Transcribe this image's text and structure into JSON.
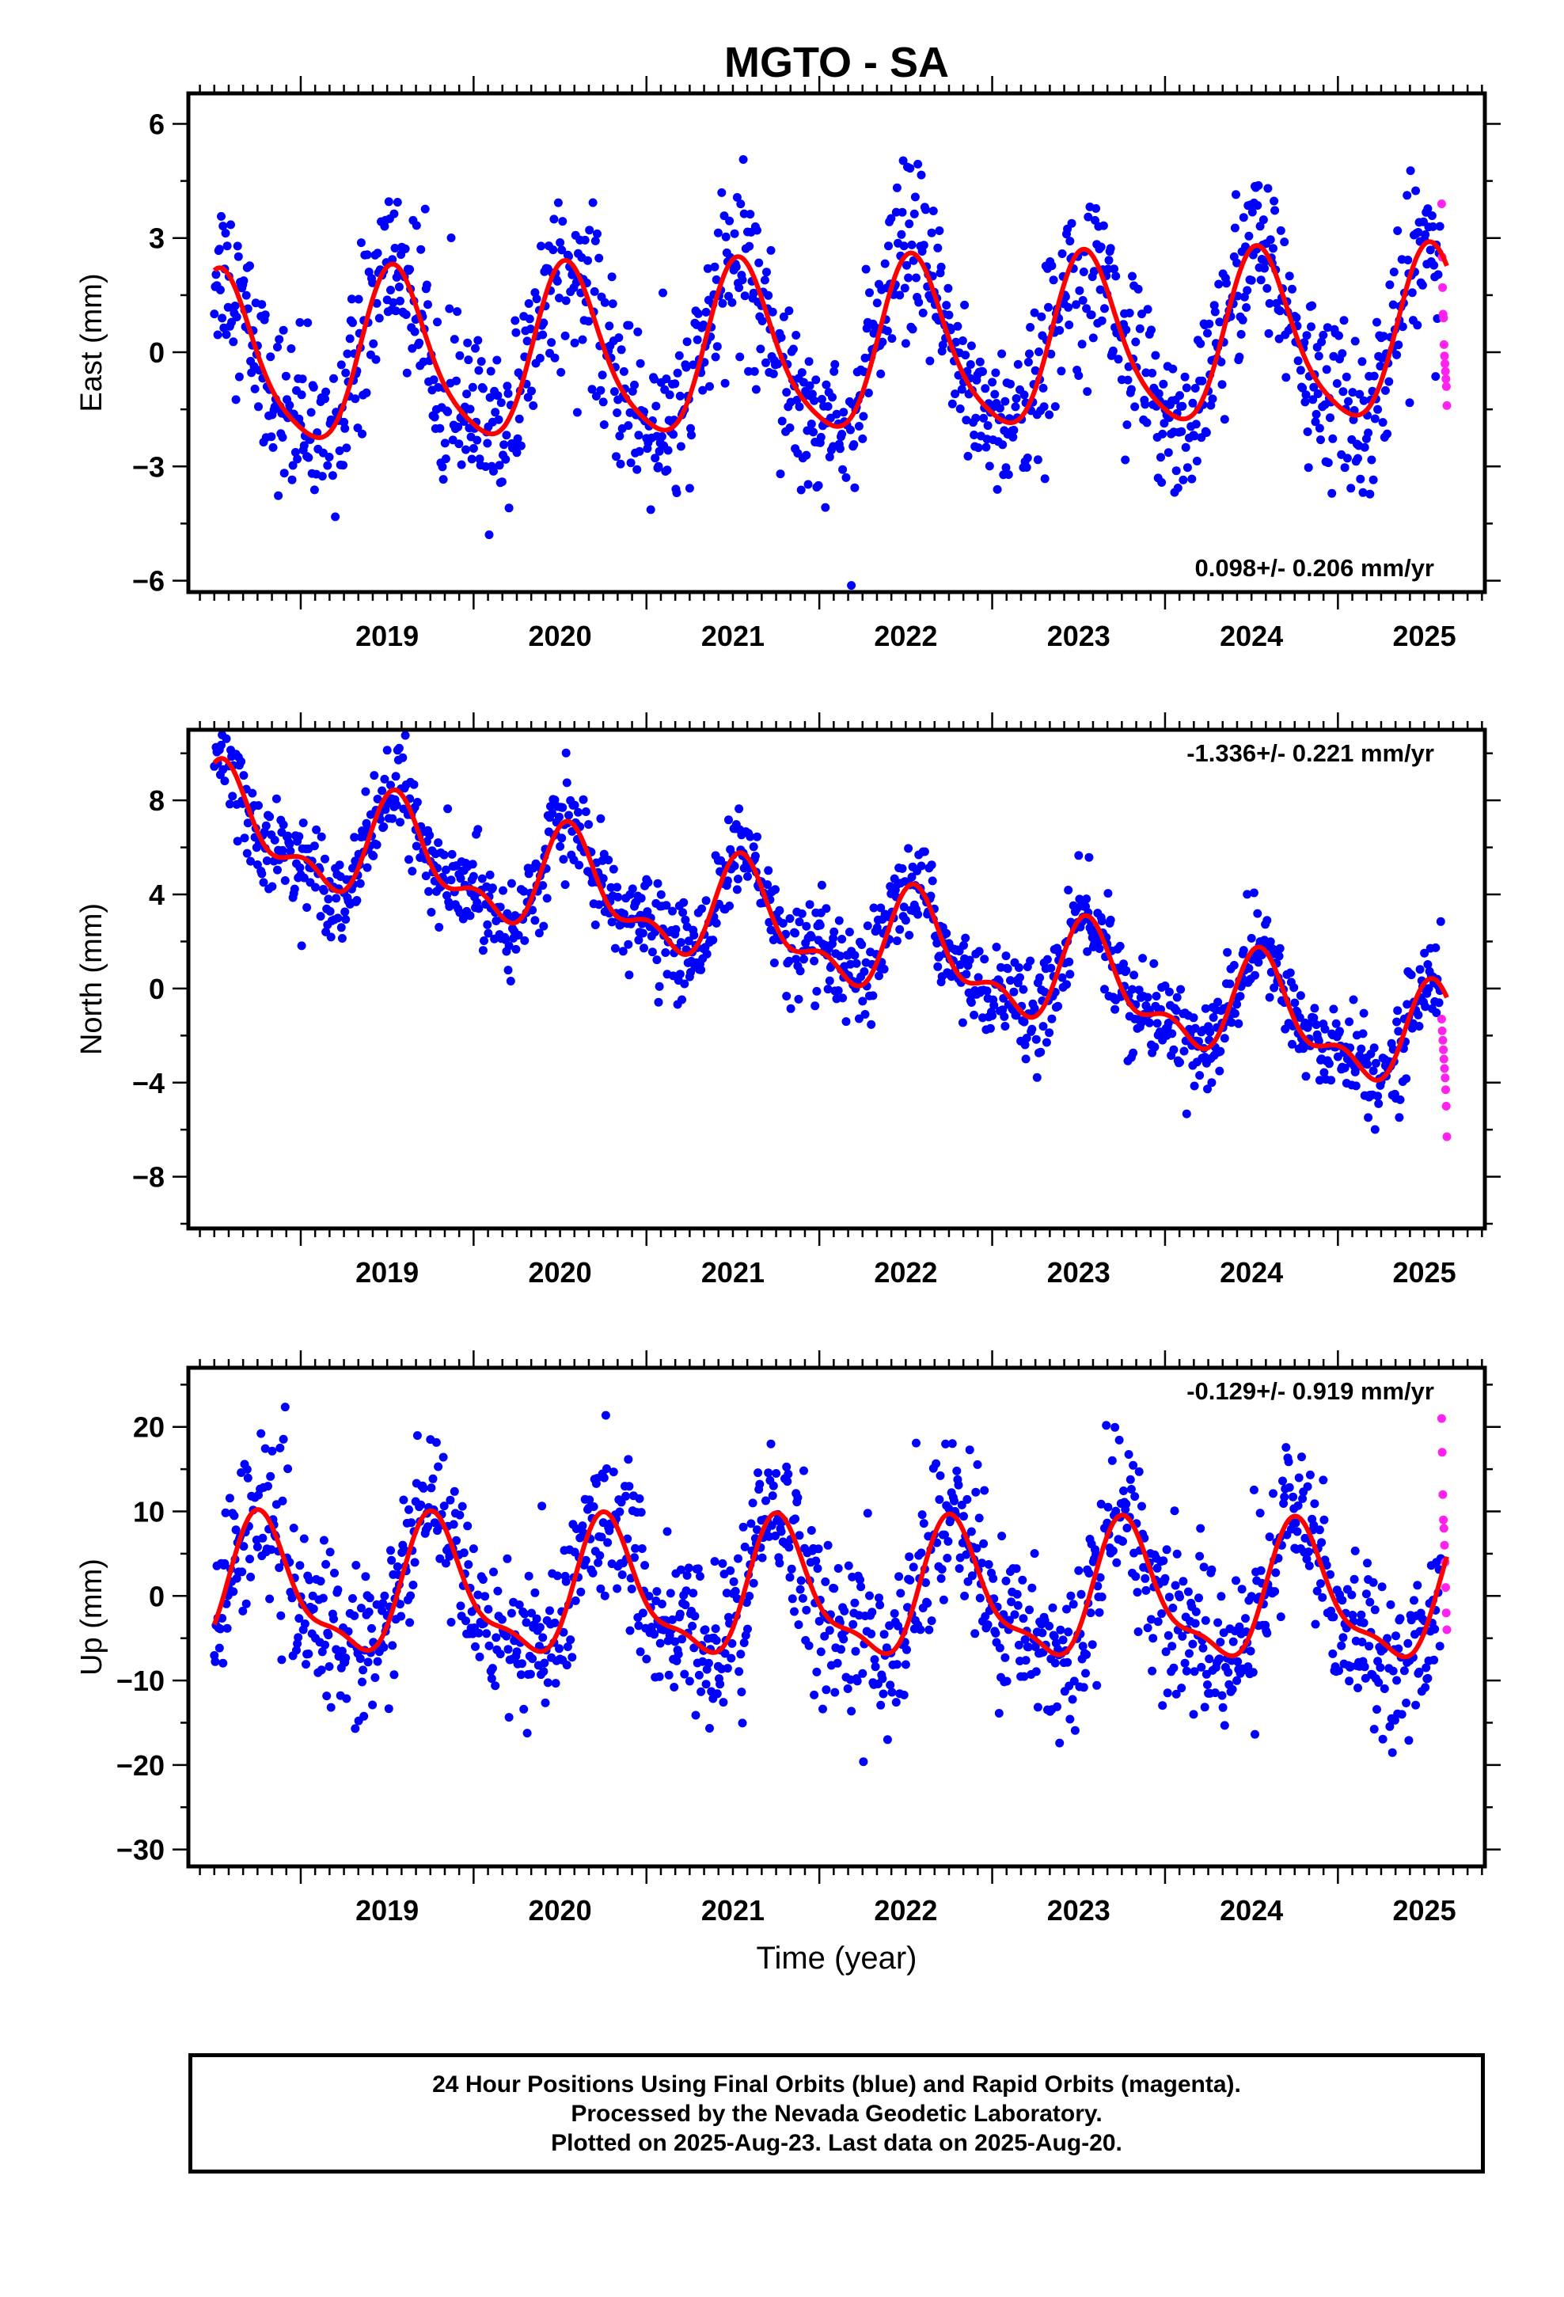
{
  "title": "MGTO - SA",
  "xlabel": "Time (year)",
  "footer": [
    "24 Hour Positions Using Final Orbits (blue) and Rapid Orbits (magenta).",
    "Processed by the Nevada Geodetic Laboratory.",
    "Plotted on 2025-Aug-23. Last data on 2025-Aug-20."
  ],
  "colors": {
    "final": "#0000ff",
    "rapid": "#ff22ee",
    "model": "#ff0000"
  },
  "chart_data": [
    {
      "type": "scatter",
      "ylabel": "East (mm)",
      "rate_label": "0.098+/- 0.206 mm/yr",
      "xlim": [
        2018.35,
        2025.85
      ],
      "ylim": [
        -6.3,
        6.8
      ],
      "yticks": [
        -6,
        -3,
        0,
        3,
        6
      ],
      "xticks": [
        2019,
        2020,
        2021,
        2022,
        2023,
        2024,
        2025
      ],
      "grid": false,
      "series": [
        {
          "name": "Final Orbits",
          "seasonal_fit": {
            "amp_annual": 2.2,
            "amp_semiannual": 0.4,
            "phase_peak": 0.55,
            "rate": 0.098,
            "ref": 2022.0
          },
          "scatter_sd": 1.1,
          "start": 2018.5,
          "end": 2025.6,
          "step": 0.005
        },
        {
          "name": "Rapid Orbits",
          "start": 2025.6,
          "end": 2025.63,
          "values": [
            3.9,
            2.5,
            1.7,
            1.0,
            0.9,
            0.2,
            -0.1,
            -0.3,
            -0.5,
            -0.7,
            -0.9,
            -1.4
          ]
        }
      ]
    },
    {
      "type": "scatter",
      "ylabel": "North (mm)",
      "rate_label": "-1.336+/- 0.221 mm/yr",
      "xlim": [
        2018.35,
        2025.85
      ],
      "ylim": [
        -10.2,
        11.0
      ],
      "yticks": [
        -8,
        -4,
        0,
        4,
        8
      ],
      "xticks": [
        2019,
        2020,
        2021,
        2022,
        2023,
        2024,
        2025
      ],
      "grid": false,
      "series": [
        {
          "name": "Final Orbits",
          "seasonal_fit": {
            "amp_annual": 1.9,
            "amp_semiannual": 1.0,
            "phase_peak": 0.58,
            "rate": -1.336,
            "offset": 7.0,
            "ref": 2018.5
          },
          "scatter_sd": 1.0,
          "start": 2018.5,
          "end": 2025.6,
          "step": 0.005
        },
        {
          "name": "Rapid Orbits",
          "start": 2025.6,
          "end": 2025.63,
          "values": [
            -1.3,
            -1.8,
            -2.2,
            -2.6,
            -3.0,
            -3.4,
            -3.8,
            -4.3,
            -5.0,
            -6.3
          ]
        }
      ]
    },
    {
      "type": "scatter",
      "ylabel": "Up (mm)",
      "rate_label": "-0.129+/- 0.919 mm/yr",
      "xlim": [
        2018.35,
        2025.85
      ],
      "ylim": [
        -32,
        27
      ],
      "yticks": [
        -30,
        -20,
        -10,
        0,
        10,
        20
      ],
      "xticks": [
        2019,
        2020,
        2021,
        2022,
        2023,
        2024,
        2025
      ],
      "grid": false,
      "series": [
        {
          "name": "Final Orbits",
          "seasonal_fit": {
            "amp_annual": 7.5,
            "amp_semiannual": 2.5,
            "phase_peak": 0.78,
            "rate": -0.129,
            "ref": 2022.0
          },
          "scatter_sd": 4.8,
          "start": 2018.5,
          "end": 2025.6,
          "step": 0.005
        },
        {
          "name": "Rapid Orbits",
          "start": 2025.6,
          "end": 2025.63,
          "values": [
            21,
            17,
            12,
            9,
            8,
            6,
            4,
            1,
            -2,
            -4
          ]
        }
      ]
    }
  ]
}
